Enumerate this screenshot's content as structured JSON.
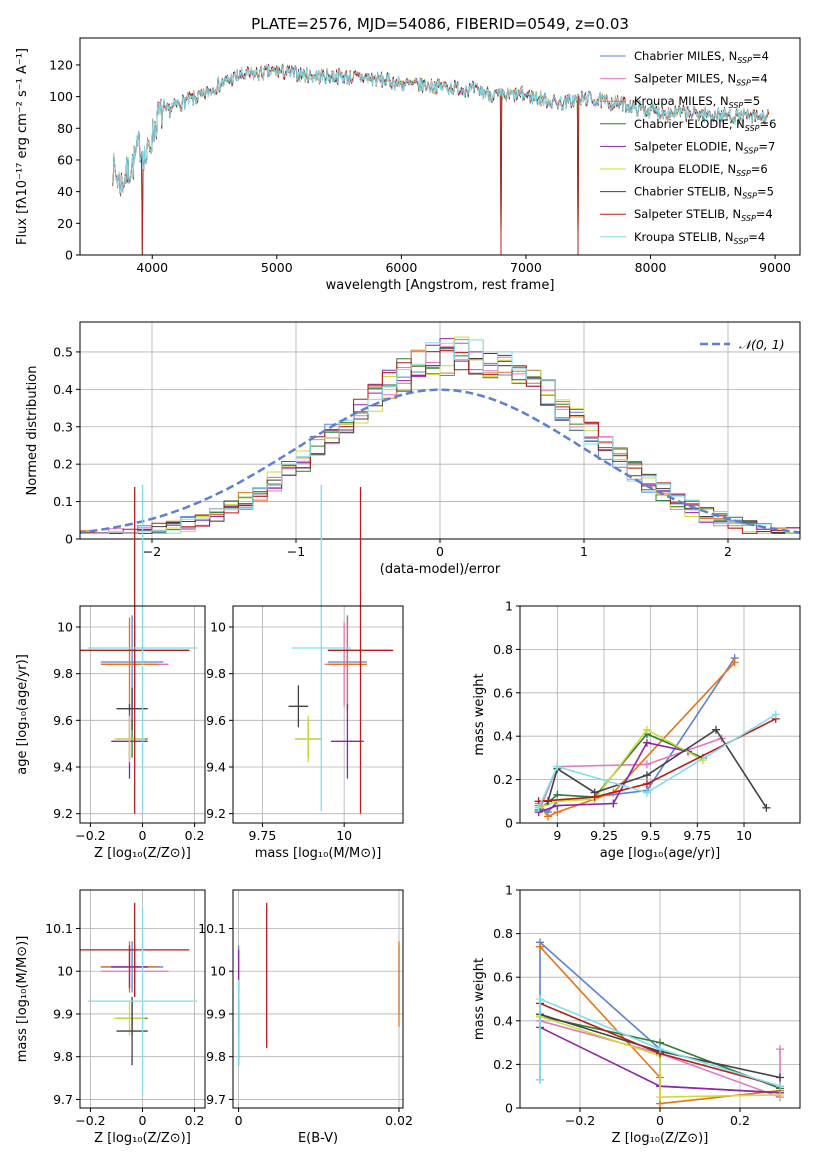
{
  "figure_title": "PLATE=2576, MJD=54086, FIBERID=0549, z=0.03",
  "colors": [
    "#5b80d6",
    "#e377c2",
    "#e8731a",
    "#2e7d32",
    "#8e24aa",
    "#cddc39",
    "#424242",
    "#b71c1c",
    "#80deea"
  ],
  "chart_data": [
    {
      "id": "spectrum",
      "type": "line",
      "title": "PLATE=2576, MJD=54086, FIBERID=0549, z=0.03",
      "xlabel": "wavelength [Angstrom, rest frame]",
      "ylabel": "Flux [fλ10⁻¹⁷ erg cm⁻² s⁻¹ A⁻¹]",
      "xlim": [
        3420,
        9200
      ],
      "ylim": [
        0,
        137
      ],
      "xticks": [
        4000,
        5000,
        6000,
        7000,
        8000,
        9000
      ],
      "yticks": [
        0,
        20,
        40,
        60,
        80,
        100,
        120
      ],
      "grid": false,
      "legend_position": "top-right",
      "series": [
        {
          "name": "Chabrier MILES, N_SSP=4"
        },
        {
          "name": "Salpeter MILES, N_SSP=4"
        },
        {
          "name": "Kroupa MILES, N_SSP=5"
        },
        {
          "name": "Chabrier ELODIE, N_SSP=6"
        },
        {
          "name": "Salpeter ELODIE, N_SSP=7"
        },
        {
          "name": "Kroupa ELODIE, N_SSP=6"
        },
        {
          "name": "Chabrier STELIB, N_SSP=5"
        },
        {
          "name": "Salpeter STELIB, N_SSP=4"
        },
        {
          "name": "Kroupa STELIB, N_SSP=4"
        }
      ],
      "continuum": [
        [
          3680,
          55
        ],
        [
          3750,
          45
        ],
        [
          3800,
          52
        ],
        [
          3850,
          58
        ],
        [
          3900,
          70
        ],
        [
          3950,
          60
        ],
        [
          4000,
          75
        ],
        [
          4050,
          88
        ],
        [
          4100,
          90
        ],
        [
          4200,
          95
        ],
        [
          4300,
          98
        ],
        [
          4400,
          100
        ],
        [
          4500,
          106
        ],
        [
          4600,
          110
        ],
        [
          4700,
          113
        ],
        [
          4800,
          114
        ],
        [
          4900,
          115
        ],
        [
          5000,
          116
        ],
        [
          5100,
          115
        ],
        [
          5200,
          114
        ],
        [
          5300,
          113
        ],
        [
          5400,
          113
        ],
        [
          5500,
          113
        ],
        [
          5600,
          112
        ],
        [
          5700,
          112
        ],
        [
          5800,
          111
        ],
        [
          5900,
          110
        ],
        [
          6000,
          108
        ],
        [
          6200,
          107
        ],
        [
          6400,
          106
        ],
        [
          6600,
          104
        ],
        [
          6800,
          100
        ],
        [
          6900,
          101
        ],
        [
          7000,
          101
        ],
        [
          7100,
          99
        ],
        [
          7200,
          97
        ],
        [
          7300,
          96
        ],
        [
          7400,
          98
        ],
        [
          7500,
          99
        ],
        [
          7600,
          97
        ],
        [
          7700,
          96
        ],
        [
          7800,
          95
        ],
        [
          7900,
          93
        ],
        [
          8000,
          91
        ],
        [
          8100,
          90
        ],
        [
          8200,
          90
        ],
        [
          8400,
          89
        ],
        [
          8600,
          88
        ],
        [
          8800,
          87
        ],
        [
          8950,
          87
        ]
      ],
      "dips": [
        [
          3920,
          0
        ],
        [
          6800,
          0
        ],
        [
          7420,
          0
        ]
      ]
    },
    {
      "id": "residuals",
      "type": "histogram",
      "xlabel": "(data-model)/error",
      "ylabel": "Normed distribution",
      "xlim": [
        -2.5,
        2.5
      ],
      "ylim": [
        0,
        0.58
      ],
      "xticks": [
        -2,
        -1,
        0,
        1,
        2
      ],
      "yticks": [
        0.0,
        0.1,
        0.2,
        0.3,
        0.4,
        0.5
      ],
      "grid": true,
      "legend_position": "top-right",
      "reference_curve": {
        "name": "𝒩(0, 1)",
        "mean": 0,
        "sigma": 1
      },
      "bin_width": 0.1,
      "envelope_center": 0.15,
      "envelope_sigma": 0.85,
      "envelope_peak": 0.49
    },
    {
      "id": "age_vs_Z",
      "type": "scatter",
      "xlabel": "Z [log₁₀(Z/Z⊙)]",
      "ylabel": "age  [log₁₀(age/yr)]",
      "xlim": [
        -0.24,
        0.24
      ],
      "ylim": [
        9.16,
        10.09
      ],
      "xticks": [
        -0.2,
        0.0,
        0.2
      ],
      "yticks": [
        9.2,
        9.4,
        9.6,
        9.8,
        10.0
      ],
      "grid": true,
      "points": [
        {
          "x": -0.04,
          "y": 9.85,
          "xerr": 0.12,
          "yerr": 0.2
        },
        {
          "x": -0.03,
          "y": 9.84,
          "xerr": 0.13,
          "yerr": 0.18
        },
        {
          "x": -0.05,
          "y": 9.84,
          "xerr": 0.11,
          "yerr": 0.2
        },
        {
          "x": -0.04,
          "y": 9.52,
          "xerr": 0.06,
          "yerr": 0.08
        },
        {
          "x": -0.05,
          "y": 9.51,
          "xerr": 0.07,
          "yerr": 0.16
        },
        {
          "x": -0.05,
          "y": 9.52,
          "xerr": 0.06,
          "yerr": 0.1
        },
        {
          "x": -0.04,
          "y": 9.65,
          "xerr": 0.06,
          "yerr": 0.09
        },
        {
          "x": -0.03,
          "y": 9.9,
          "xerr": 0.21,
          "yerr": 0.7
        },
        {
          "x": 0.0,
          "y": 9.91,
          "xerr": 0.21,
          "yerr": 0.7
        }
      ]
    },
    {
      "id": "age_vs_mass",
      "type": "scatter",
      "xlabel": "mass [log₁₀(M/M⊙)]",
      "ylabel": "",
      "xlim": [
        9.66,
        10.18
      ],
      "ylim": [
        9.16,
        10.09
      ],
      "xticks": [
        9.75,
        10.0
      ],
      "yticks": [
        9.2,
        9.4,
        9.6,
        9.8,
        10.0
      ],
      "grid": true,
      "points": [
        {
          "x": 10.01,
          "y": 9.85,
          "xerr": 0.06,
          "yerr": 0.2
        },
        {
          "x": 10.0,
          "y": 9.84,
          "xerr": 0.06,
          "yerr": 0.18
        },
        {
          "x": 10.01,
          "y": 9.84,
          "xerr": 0.06,
          "yerr": 0.2
        },
        {
          "x": 9.89,
          "y": 9.52,
          "xerr": 0.04,
          "yerr": 0.08
        },
        {
          "x": 10.01,
          "y": 9.51,
          "xerr": 0.05,
          "yerr": 0.16
        },
        {
          "x": 9.89,
          "y": 9.52,
          "xerr": 0.04,
          "yerr": 0.1
        },
        {
          "x": 9.86,
          "y": 9.66,
          "xerr": 0.03,
          "yerr": 0.09
        },
        {
          "x": 10.05,
          "y": 9.9,
          "xerr": 0.1,
          "yerr": 0.7
        },
        {
          "x": 9.93,
          "y": 9.91,
          "xerr": 0.09,
          "yerr": 0.7
        }
      ]
    },
    {
      "id": "weight_vs_age",
      "type": "line",
      "xlabel": "age  [log₁₀(age/yr)]",
      "ylabel": "mass weight",
      "xlim": [
        8.8,
        10.3
      ],
      "ylim": [
        0,
        1
      ],
      "xticks": [
        9.0,
        9.25,
        9.5,
        9.75,
        10.0
      ],
      "yticks": [
        0.0,
        0.2,
        0.4,
        0.6,
        0.8,
        1.0
      ],
      "grid": true,
      "series": [
        {
          "x": [
            8.9,
            8.95,
            9.0,
            9.48,
            9.95
          ],
          "y": [
            0.08,
            0.05,
            0.1,
            0.15,
            0.76
          ]
        },
        {
          "x": [
            8.9,
            9.0,
            9.48,
            9.88
          ],
          "y": [
            0.05,
            0.26,
            0.27,
            0.39
          ]
        },
        {
          "x": [
            8.9,
            8.95,
            9.0,
            9.3,
            9.95
          ],
          "y": [
            0.09,
            0.03,
            0.05,
            0.14,
            0.74
          ]
        },
        {
          "x": [
            8.9,
            9.0,
            9.2,
            9.48,
            9.78
          ],
          "y": [
            0.06,
            0.13,
            0.12,
            0.41,
            0.3
          ]
        },
        {
          "x": [
            8.9,
            9.0,
            9.3,
            9.48,
            9.7
          ],
          "y": [
            0.05,
            0.08,
            0.09,
            0.37,
            0.33
          ]
        },
        {
          "x": [
            8.9,
            9.0,
            9.2,
            9.48,
            9.78
          ],
          "y": [
            0.07,
            0.1,
            0.11,
            0.43,
            0.29
          ]
        },
        {
          "x": [
            8.95,
            9.0,
            9.2,
            9.48,
            9.85,
            10.12
          ],
          "y": [
            0.1,
            0.25,
            0.14,
            0.22,
            0.43,
            0.07
          ]
        },
        {
          "x": [
            8.9,
            9.2,
            9.48,
            10.17
          ],
          "y": [
            0.1,
            0.12,
            0.18,
            0.48
          ]
        },
        {
          "x": [
            8.9,
            9.0,
            9.48,
            10.17
          ],
          "y": [
            0.07,
            0.26,
            0.14,
            0.5
          ]
        }
      ]
    },
    {
      "id": "mass_vs_Z",
      "type": "scatter",
      "xlabel": "Z [log₁₀(Z/Z⊙)]",
      "ylabel": "mass [log₁₀(M/M⊙)]",
      "xlim": [
        -0.24,
        0.24
      ],
      "ylim": [
        9.68,
        10.19
      ],
      "xticks": [
        -0.2,
        0.0,
        0.2
      ],
      "yticks": [
        9.7,
        9.8,
        9.9,
        10.0,
        10.1
      ],
      "grid": true,
      "points": [
        {
          "x": -0.04,
          "y": 10.01,
          "xerr": 0.12,
          "yerr": 0.06
        },
        {
          "x": -0.03,
          "y": 10.0,
          "xerr": 0.13,
          "yerr": 0.06
        },
        {
          "x": -0.05,
          "y": 10.01,
          "xerr": 0.11,
          "yerr": 0.06
        },
        {
          "x": -0.04,
          "y": 9.89,
          "xerr": 0.06,
          "yerr": 0.04
        },
        {
          "x": -0.05,
          "y": 10.01,
          "xerr": 0.07,
          "yerr": 0.05
        },
        {
          "x": -0.05,
          "y": 9.89,
          "xerr": 0.06,
          "yerr": 0.04
        },
        {
          "x": -0.04,
          "y": 9.86,
          "xerr": 0.06,
          "yerr": 0.08
        },
        {
          "x": -0.03,
          "y": 10.05,
          "xerr": 0.21,
          "yerr": 0.11
        },
        {
          "x": 0.0,
          "y": 9.93,
          "xerr": 0.21,
          "yerr": 0.22
        }
      ]
    },
    {
      "id": "mass_vs_ebv",
      "type": "scatter",
      "xlabel": "E(B-V)",
      "ylabel": "",
      "xlim": [
        -0.0007,
        0.0205
      ],
      "ylim": [
        9.68,
        10.19
      ],
      "xticks": [
        0.0,
        0.02
      ],
      "yticks": [
        9.7,
        9.8,
        9.9,
        10.0,
        10.1
      ],
      "grid": true,
      "points": [
        {
          "x": 0.0,
          "y": 10.0,
          "xerr": 0,
          "yerr": 0.06
        },
        {
          "x": 0.02,
          "y": 9.98,
          "xerr": 0,
          "yerr": 0.08
        },
        {
          "x": 0.02,
          "y": 9.97,
          "xerr": 0,
          "yerr": 0.1
        },
        {
          "x": 0.0,
          "y": 9.89,
          "xerr": 0,
          "yerr": 0.04
        },
        {
          "x": 0.0,
          "y": 10.0,
          "xerr": 0,
          "yerr": 0.05
        },
        {
          "x": 0.0,
          "y": 9.89,
          "xerr": 0,
          "yerr": 0.04
        },
        {
          "x": 0.0,
          "y": 9.86,
          "xerr": 0,
          "yerr": 0.08
        },
        {
          "x": 0.0035,
          "y": 9.99,
          "xerr": 0,
          "yerr": 0.17
        },
        {
          "x": 0.0,
          "y": 9.88,
          "xerr": 0,
          "yerr": 0.1
        }
      ]
    },
    {
      "id": "weight_vs_Z",
      "type": "line",
      "xlabel": "Z [log₁₀(Z/Z⊙)]",
      "ylabel": "mass weight",
      "xlim": [
        -0.35,
        0.35
      ],
      "ylim": [
        0,
        1
      ],
      "xticks": [
        -0.2,
        0.0,
        0.2
      ],
      "yticks": [
        0.0,
        0.2,
        0.4,
        0.6,
        0.8,
        1.0
      ],
      "grid": true,
      "series": [
        {
          "x": [
            -0.3,
            -0.3,
            0.0,
            0.0,
            0.3
          ],
          "y": [
            0.13,
            0.76,
            0.27,
            0.1,
            0.07
          ]
        },
        {
          "x": [
            -0.3,
            0.0,
            0.3,
            0.3
          ],
          "y": [
            0.4,
            0.25,
            0.05,
            0.27
          ]
        },
        {
          "x": [
            -0.3,
            0.0,
            0.0,
            0.3
          ],
          "y": [
            0.74,
            0.14,
            0.02,
            0.08
          ]
        },
        {
          "x": [
            -0.3,
            0.0,
            0.3
          ],
          "y": [
            0.42,
            0.3,
            0.09
          ]
        },
        {
          "x": [
            -0.3,
            0.0,
            0.3
          ],
          "y": [
            0.37,
            0.1,
            0.07
          ]
        },
        {
          "x": [
            -0.3,
            0.0,
            0.0,
            0.3
          ],
          "y": [
            0.42,
            0.24,
            0.05,
            0.06
          ]
        },
        {
          "x": [
            -0.3,
            0.0,
            0.3
          ],
          "y": [
            0.43,
            0.26,
            0.14
          ]
        },
        {
          "x": [
            -0.3,
            0.0,
            0.3
          ],
          "y": [
            0.48,
            0.25,
            0.1
          ]
        },
        {
          "x": [
            -0.3,
            -0.3,
            0.0,
            0.3
          ],
          "y": [
            0.13,
            0.5,
            0.27,
            0.1
          ]
        }
      ]
    }
  ]
}
